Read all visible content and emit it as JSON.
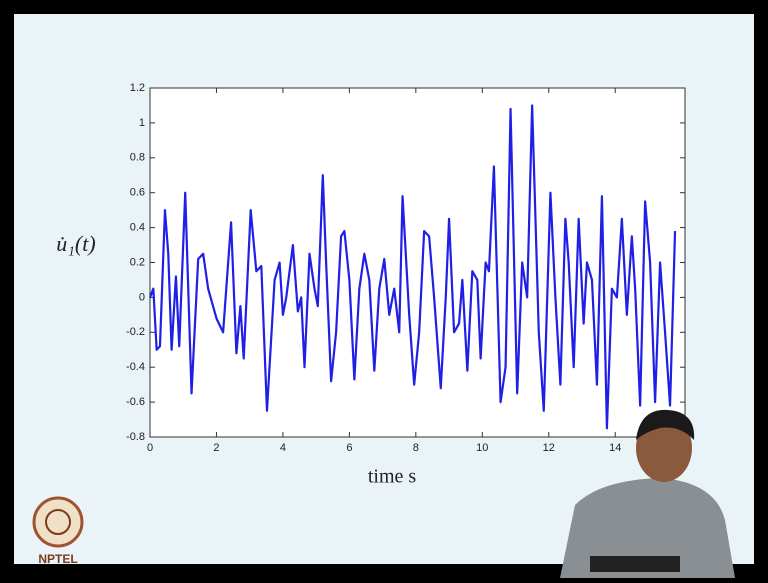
{
  "chart_data": {
    "type": "line",
    "y_label": "u̇₁(t)",
    "x_label": "time s",
    "x": [
      0,
      0.1,
      0.2,
      0.3,
      0.45,
      0.55,
      0.65,
      0.78,
      0.88,
      1.06,
      1.25,
      1.45,
      1.6,
      1.75,
      2.0,
      2.2,
      2.44,
      2.6,
      2.72,
      2.82,
      3.03,
      3.2,
      3.35,
      3.52,
      3.75,
      3.9,
      4.0,
      4.1,
      4.3,
      4.45,
      4.55,
      4.65,
      4.8,
      4.95,
      5.05,
      5.2,
      5.3,
      5.45,
      5.6,
      5.75,
      5.85,
      6.0,
      6.15,
      6.3,
      6.45,
      6.6,
      6.75,
      6.9,
      7.05,
      7.2,
      7.35,
      7.5,
      7.6,
      7.8,
      7.95,
      8.1,
      8.25,
      8.4,
      8.55,
      8.75,
      8.9,
      9.0,
      9.15,
      9.3,
      9.4,
      9.55,
      9.7,
      9.85,
      9.95,
      10.1,
      10.2,
      10.35,
      10.55,
      10.7,
      10.85,
      11.05,
      11.2,
      11.35,
      11.5,
      11.7,
      11.85,
      12.05,
      12.2,
      12.35,
      12.5,
      12.6,
      12.75,
      12.9,
      13.05,
      13.15,
      13.3,
      13.45,
      13.6,
      13.75,
      13.9,
      14.05,
      14.2,
      14.35,
      14.5,
      14.6,
      14.75,
      14.9,
      15.05,
      15.2,
      15.35,
      15.5,
      15.65,
      15.8
    ],
    "series": [
      {
        "color": "#1f1fe6",
        "values": [
          0,
          0.05,
          -0.3,
          -0.28,
          0.5,
          0.25,
          -0.3,
          0.12,
          -0.28,
          0.6,
          -0.55,
          0.22,
          0.25,
          0.05,
          -0.12,
          -0.2,
          0.43,
          -0.32,
          -0.05,
          -0.35,
          0.5,
          0.15,
          0.18,
          -0.65,
          0.1,
          0.2,
          -0.1,
          0,
          0.3,
          -0.08,
          0,
          -0.4,
          0.25,
          0.05,
          -0.05,
          0.7,
          0.2,
          -0.48,
          -0.2,
          0.35,
          0.38,
          0.1,
          -0.47,
          0.05,
          0.25,
          0.1,
          -0.42,
          0.05,
          0.22,
          -0.1,
          0.05,
          -0.2,
          0.58,
          -0.1,
          -0.5,
          -0.2,
          0.38,
          0.35,
          0,
          -0.52,
          0,
          0.45,
          -0.2,
          -0.15,
          0.1,
          -0.42,
          0.15,
          0.1,
          -0.35,
          0.2,
          0.15,
          0.75,
          -0.6,
          -0.4,
          1.08,
          -0.55,
          0.2,
          0,
          1.1,
          -0.2,
          -0.65,
          0.6,
          0,
          -0.5,
          0.45,
          0.2,
          -0.4,
          0.45,
          -0.15,
          0.2,
          0.1,
          -0.5,
          0.58,
          -0.75,
          0.05,
          0,
          0.45,
          -0.1,
          0.35,
          0.05,
          -0.62,
          0.55,
          0.2,
          -0.6,
          0.2,
          -0.2,
          -0.62,
          0.38
        ]
      }
    ],
    "xlim": [
      0,
      16.1
    ],
    "xticks": [
      0,
      2,
      4,
      6,
      8,
      10,
      12,
      14
    ],
    "ylim": [
      -0.8,
      1.2
    ],
    "yticks": [
      -0.8,
      -0.6,
      -0.4,
      -0.2,
      0,
      0.2,
      0.4,
      0.6,
      0.8,
      1,
      1.2
    ]
  },
  "logo": {
    "text": "NPTEL"
  }
}
